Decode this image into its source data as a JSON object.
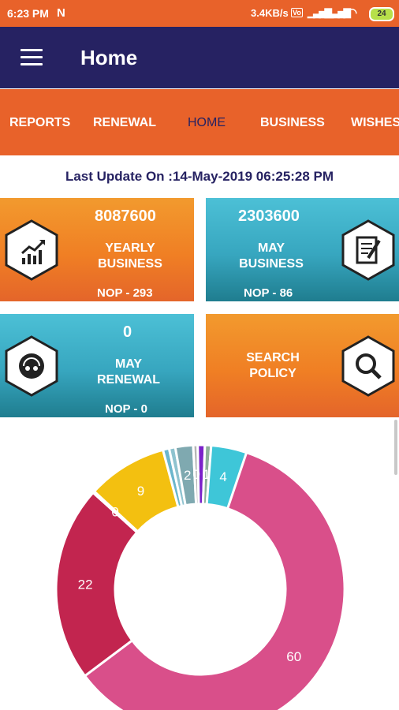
{
  "status_bar": {
    "time": "6:23 PM",
    "notification_icon": "N",
    "network_speed": "3.4KB/s",
    "volte": "Vo",
    "battery": "24"
  },
  "app_bar": {
    "title": "Home"
  },
  "tabs": [
    {
      "label": "REPORTS",
      "active": false
    },
    {
      "label": "RENEWAL",
      "active": false
    },
    {
      "label": "HOME",
      "active": true
    },
    {
      "label": "BUSINESS",
      "active": false
    },
    {
      "label": "WISHES",
      "active": false
    }
  ],
  "last_update": "Last Update On :14-May-2019 06:25:28 PM",
  "cards": {
    "yearly_business": {
      "value": "8087600",
      "label_line1": "YEARLY",
      "label_line2": "BUSINESS",
      "nop": "NOP - 293",
      "icon": "growth-chart-icon"
    },
    "may_business": {
      "value": "2303600",
      "label_line1": "MAY",
      "label_line2": "BUSINESS",
      "nop": "NOP - 86",
      "icon": "document-pen-icon"
    },
    "may_renewal": {
      "value": "0",
      "label_line1": "MAY",
      "label_line2": "RENEWAL",
      "nop": "NOP - 0",
      "icon": "renewal-icon"
    },
    "search_policy": {
      "label_line1": "SEARCH",
      "label_line2": "POLICY",
      "icon": "magnifier-icon"
    }
  },
  "chart_data": {
    "type": "pie",
    "style": "donut",
    "slices": [
      {
        "value": 60,
        "label": "60",
        "color": "#d94f8a"
      },
      {
        "value": 22,
        "label": "22",
        "color": "#c2254f"
      },
      {
        "value": 0,
        "label": "0",
        "color": "#f3c010"
      },
      {
        "value": 9,
        "label": "9",
        "color": "#f3c010"
      },
      {
        "value": 0.7,
        "label": "",
        "color": "#6bb6cc"
      },
      {
        "value": 0.7,
        "label": "",
        "color": "#8ec3cf"
      },
      {
        "value": 2,
        "label": "2",
        "color": "#7fa9b0"
      },
      {
        "value": 0.5,
        "label": "0",
        "color": "#b5b5b5"
      },
      {
        "value": 0.8,
        "label": "",
        "color": "#7b22c9"
      },
      {
        "value": 0.7,
        "label": "1",
        "color": "#8fb09a"
      },
      {
        "value": 4,
        "label": "4",
        "color": "#3ec6d8"
      }
    ],
    "visible_labels": [
      "60",
      "22",
      "0",
      "9",
      "0",
      "2",
      "0",
      "1",
      "4"
    ]
  }
}
